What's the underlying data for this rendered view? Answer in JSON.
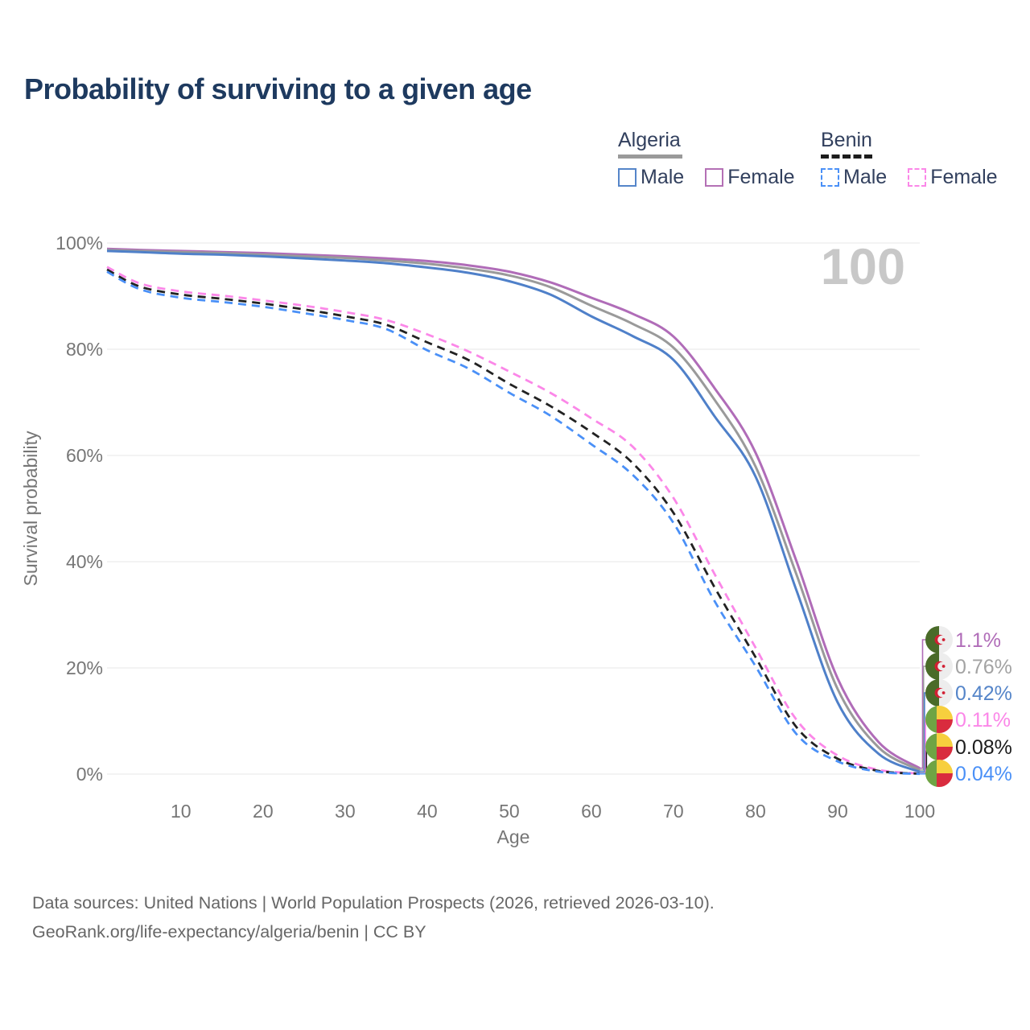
{
  "title": "Probability of surviving to a given age",
  "watermark": "100",
  "legend": {
    "groups": [
      {
        "country": "Algeria",
        "line_style": "solid",
        "line_color": "#9a9a9a",
        "items": [
          {
            "label": "Male",
            "color": "#5585c9",
            "style": "solid"
          },
          {
            "label": "Female",
            "color": "#b470b5",
            "style": "solid"
          }
        ]
      },
      {
        "country": "Benin",
        "line_style": "dashed",
        "line_color": "#1c1c1c",
        "items": [
          {
            "label": "Male",
            "color": "#4a90f7",
            "style": "dashed"
          },
          {
            "label": "Female",
            "color": "#fb87e8",
            "style": "dashed"
          }
        ]
      }
    ]
  },
  "chart_data": {
    "type": "line",
    "title": "Probability of surviving to a given age",
    "xlabel": "Age",
    "ylabel": "Survival probability",
    "xlim": [
      1,
      100
    ],
    "ylim": [
      0,
      100
    ],
    "x_ticks": [
      10,
      20,
      30,
      40,
      50,
      60,
      70,
      80,
      90,
      100
    ],
    "y_ticks": [
      0,
      20,
      40,
      60,
      80,
      100
    ],
    "y_tick_suffix": "%",
    "grid": "horizontal",
    "legend_position": "top-right",
    "x": [
      1,
      5,
      10,
      15,
      20,
      25,
      30,
      35,
      40,
      45,
      50,
      55,
      60,
      65,
      70,
      75,
      80,
      85,
      90,
      95,
      100
    ],
    "series": [
      {
        "name": "Algeria Female",
        "color": "#b06cb8",
        "dash": "solid",
        "flag": "algeria",
        "end_label": "1.1%",
        "end_label_color": "#b06cb8",
        "values": [
          98.9,
          98.7,
          98.5,
          98.3,
          98.1,
          97.8,
          97.5,
          97.1,
          96.6,
          95.8,
          94.6,
          92.6,
          89.7,
          86.7,
          82.4,
          72.7,
          60.5,
          40.0,
          18.0,
          6.0,
          1.1
        ]
      },
      {
        "name": "Algeria Both sexes",
        "color": "#9a9a9a",
        "dash": "solid",
        "flag": "algeria",
        "end_label": "0.76%",
        "end_label_color": "#a3a3a3",
        "values": [
          98.7,
          98.5,
          98.3,
          98.1,
          97.8,
          97.5,
          97.2,
          96.7,
          96.1,
          95.2,
          93.9,
          91.7,
          88.2,
          84.8,
          80.3,
          70.5,
          57.9,
          37.5,
          16.0,
          5.0,
          0.76
        ]
      },
      {
        "name": "Algeria Male",
        "color": "#4f80c9",
        "dash": "solid",
        "flag": "algeria",
        "end_label": "0.42%",
        "end_label_color": "#5585c9",
        "values": [
          98.5,
          98.3,
          98.0,
          97.8,
          97.5,
          97.1,
          96.7,
          96.2,
          95.4,
          94.4,
          92.8,
          90.3,
          86.2,
          82.5,
          78.0,
          67.4,
          56.0,
          34.5,
          13.5,
          3.8,
          0.42
        ]
      },
      {
        "name": "Benin Female",
        "color": "#fb87e8",
        "dash": "dashed",
        "flag": "benin",
        "end_label": "0.11%",
        "end_label_color": "#fb87e8",
        "values": [
          95.5,
          92.4,
          90.9,
          90.1,
          89.2,
          88.2,
          87.0,
          85.5,
          82.8,
          79.6,
          75.8,
          71.8,
          67.0,
          61.7,
          52.0,
          37.7,
          23.8,
          10.2,
          3.5,
          0.8,
          0.11
        ]
      },
      {
        "name": "Benin Both sexes",
        "color": "#222222",
        "dash": "dashed",
        "flag": "benin",
        "end_label": "0.08%",
        "end_label_color": "#1c1c1c",
        "values": [
          95.0,
          91.8,
          90.3,
          89.5,
          88.6,
          87.5,
          86.2,
          84.6,
          81.3,
          78.0,
          73.5,
          69.3,
          64.4,
          58.6,
          49.2,
          35.2,
          22.0,
          8.8,
          2.9,
          0.6,
          0.08
        ]
      },
      {
        "name": "Benin Male",
        "color": "#4a90f7",
        "dash": "dashed",
        "flag": "benin",
        "end_label": "0.04%",
        "end_label_color": "#4a90f7",
        "values": [
          94.6,
          91.3,
          89.7,
          88.9,
          88.0,
          86.8,
          85.5,
          83.8,
          79.8,
          76.4,
          71.8,
          67.5,
          62.1,
          56.4,
          47.3,
          32.6,
          20.3,
          7.5,
          2.4,
          0.45,
          0.04
        ]
      }
    ]
  },
  "flags": {
    "algeria": {
      "green": "#4a6b29",
      "white": "#ededed",
      "red": "#d21f33"
    },
    "benin": {
      "green": "#6fa444",
      "yellow": "#f7cf3e",
      "red": "#d92c3e"
    }
  },
  "colors": {
    "grid": "#ececec",
    "axis_text": "#767676",
    "title_text": "#1e3a5f",
    "watermark_text": "#c8c8c8",
    "footer_text": "#666666"
  },
  "footer": {
    "line1": "Data sources: United Nations | World Population Prospects (2026, retrieved 2026-03-10).",
    "line2": "GeoRank.org/life-expectancy/algeria/benin | CC BY"
  }
}
